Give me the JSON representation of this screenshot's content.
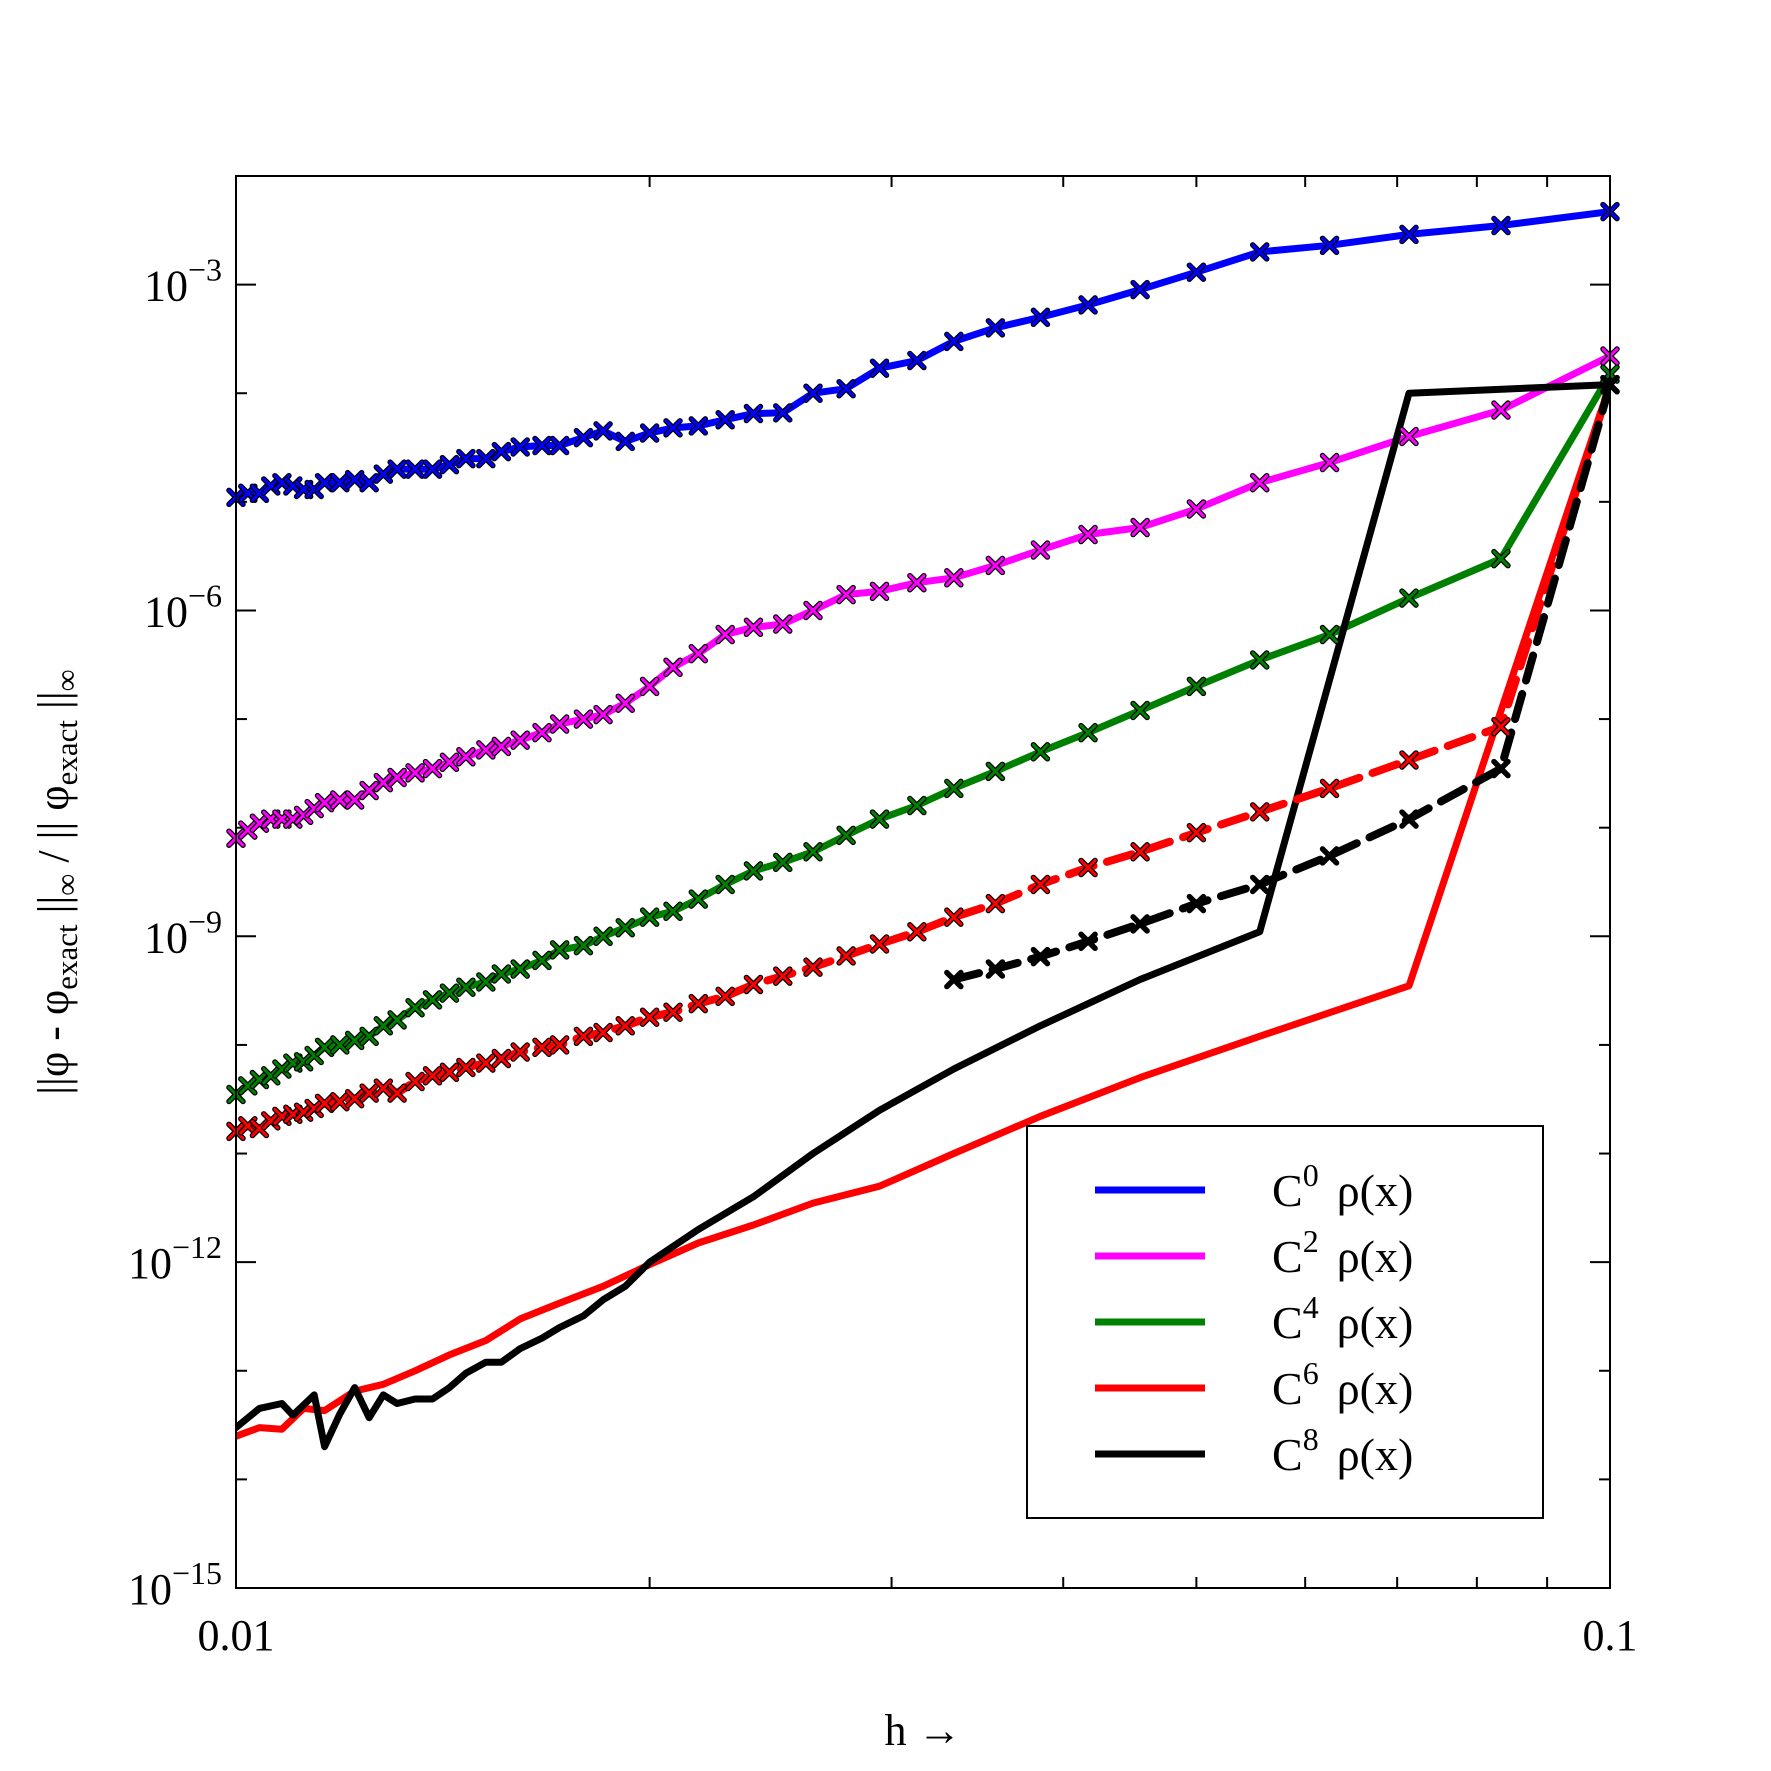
{
  "chart_data": {
    "type": "line",
    "xlabel": "h →",
    "ylabel": "||φ - φexact ||∞ / || φexact ||∞",
    "ylabel_parts": {
      "a": "||φ - φ",
      "a_sub": "exact",
      "b": " ||",
      "b_sub": "∞",
      "c": " / || φ",
      "c_sub": "exact",
      "d": " ||",
      "d_sub": "∞"
    },
    "x_scale": "log",
    "y_scale": "log",
    "xlim": [
      0.01,
      0.1
    ],
    "ylim": [
      1e-15,
      0.01
    ],
    "x_tick_labels": [
      {
        "value": 0.01,
        "label": "0.01"
      },
      {
        "value": 0.1,
        "label": "0.1"
      }
    ],
    "y_tick_labels": [
      {
        "value": 0.001,
        "base": "10",
        "exp": "−3"
      },
      {
        "value": 1e-06,
        "base": "10",
        "exp": "−6"
      },
      {
        "value": 1e-09,
        "base": "10",
        "exp": "−9"
      },
      {
        "value": 1e-12,
        "base": "10",
        "exp": "−12"
      },
      {
        "value": 1e-15,
        "base": "10",
        "exp": "−15"
      }
    ],
    "legend_position": "lower-right",
    "series": [
      {
        "name": "C0 ρ(x)",
        "legend_base": "C",
        "legend_sup": "0",
        "legend_rest": "ρ(x)",
        "color": "#0000ff",
        "linestyle": "solid",
        "marker": "x",
        "x": [
          0.01,
          0.0102,
          0.0104,
          0.0106,
          0.0108,
          0.011,
          0.0112,
          0.0114,
          0.0116,
          0.0119,
          0.0122,
          0.0125,
          0.0128,
          0.0131,
          0.0135,
          0.0139,
          0.0143,
          0.0147,
          0.0152,
          0.0156,
          0.0161,
          0.0167,
          0.0172,
          0.0179,
          0.0185,
          0.0192,
          0.02,
          0.0208,
          0.0217,
          0.0227,
          0.0238,
          0.025,
          0.0263,
          0.0278,
          0.0294,
          0.0313,
          0.0333,
          0.0357,
          0.0385,
          0.0417,
          0.0455,
          0.05,
          0.0556,
          0.0625,
          0.0714,
          0.0833,
          0.1
        ],
        "y": [
          1.1e-05,
          1.2e-05,
          1.2e-05,
          1.4e-05,
          1.5e-05,
          1.4e-05,
          1.3e-05,
          1.3e-05,
          1.5e-05,
          1.5e-05,
          1.6e-05,
          1.5e-05,
          1.8e-05,
          2e-05,
          2e-05,
          2e-05,
          2.2e-05,
          2.5e-05,
          2.5e-05,
          2.9e-05,
          3.2e-05,
          3.3e-05,
          3.3e-05,
          3.9e-05,
          4.5e-05,
          3.6e-05,
          4.3e-05,
          4.8e-05,
          5e-05,
          5.7e-05,
          6.5e-05,
          6.6e-05,
          0.0001,
          0.00011,
          0.00017,
          0.0002,
          0.0003,
          0.0004,
          0.0005,
          0.00065,
          0.0009,
          0.0013,
          0.002,
          0.0023,
          0.0029,
          0.0035,
          0.0047
        ]
      },
      {
        "name": "C2 ρ(x)",
        "legend_base": "C",
        "legend_sup": "2",
        "legend_rest": "ρ(x)",
        "color": "#ff00ff",
        "linestyle": "solid",
        "marker": "x",
        "x": [
          0.01,
          0.0102,
          0.0104,
          0.0106,
          0.0108,
          0.011,
          0.0112,
          0.0114,
          0.0116,
          0.0119,
          0.0122,
          0.0125,
          0.0128,
          0.0131,
          0.0135,
          0.0139,
          0.0143,
          0.0147,
          0.0152,
          0.0156,
          0.0161,
          0.0167,
          0.0172,
          0.0179,
          0.0185,
          0.0192,
          0.02,
          0.0208,
          0.0217,
          0.0227,
          0.0238,
          0.025,
          0.0263,
          0.0278,
          0.0294,
          0.0313,
          0.0333,
          0.0357,
          0.0385,
          0.0417,
          0.0455,
          0.05,
          0.0556,
          0.0625,
          0.0714,
          0.0833,
          0.1
        ],
        "y": [
          8e-09,
          9.5e-09,
          1.1e-08,
          1.2e-08,
          1.2e-08,
          1.2e-08,
          1.3e-08,
          1.5e-08,
          1.7e-08,
          1.8e-08,
          1.8e-08,
          2.2e-08,
          2.6e-08,
          2.9e-08,
          3.2e-08,
          3.5e-08,
          4e-08,
          4.5e-08,
          5.2e-08,
          5.6e-08,
          6.4e-08,
          7.5e-08,
          9e-08,
          1e-07,
          1.1e-07,
          1.4e-07,
          2e-07,
          3e-07,
          4e-07,
          6e-07,
          7e-07,
          7.5e-07,
          1e-06,
          1.4e-06,
          1.5e-06,
          1.8e-06,
          2e-06,
          2.6e-06,
          3.6e-06,
          5e-06,
          5.8e-06,
          8.6e-06,
          1.5e-05,
          2.3e-05,
          4e-05,
          7e-05,
          0.00022
        ]
      },
      {
        "name": "C4 ρ(x)",
        "legend_base": "C",
        "legend_sup": "4",
        "legend_rest": "ρ(x)",
        "color": "#008000",
        "linestyle": "solid",
        "marker": "x",
        "x": [
          0.01,
          0.0102,
          0.0104,
          0.0106,
          0.0108,
          0.011,
          0.0112,
          0.0114,
          0.0116,
          0.0119,
          0.0122,
          0.0125,
          0.0128,
          0.0131,
          0.0135,
          0.0139,
          0.0143,
          0.0147,
          0.0152,
          0.0156,
          0.0161,
          0.0167,
          0.0172,
          0.0179,
          0.0185,
          0.0192,
          0.02,
          0.0208,
          0.0217,
          0.0227,
          0.0238,
          0.025,
          0.0263,
          0.0278,
          0.0294,
          0.0313,
          0.0333,
          0.0357,
          0.0385,
          0.0417,
          0.0455,
          0.05,
          0.0556,
          0.0625,
          0.0714,
          0.0833,
          0.1
        ],
        "y": [
          3.5e-11,
          4.2e-11,
          4.8e-11,
          5.2e-11,
          6e-11,
          6.8e-11,
          7e-11,
          8e-11,
          9.5e-11,
          1e-10,
          1.1e-10,
          1.2e-10,
          1.5e-10,
          1.7e-10,
          2.2e-10,
          2.6e-10,
          3e-10,
          3.4e-10,
          3.8e-10,
          4.5e-10,
          5e-10,
          6e-10,
          7.5e-10,
          8.2e-10,
          1e-09,
          1.2e-09,
          1.5e-09,
          1.7e-09,
          2.2e-09,
          3e-09,
          4e-09,
          4.8e-09,
          6e-09,
          8.5e-09,
          1.2e-08,
          1.6e-08,
          2.3e-08,
          3.3e-08,
          5e-08,
          7.5e-08,
          1.2e-07,
          2e-07,
          3.5e-07,
          6e-07,
          1.3e-06,
          3e-06,
          0.00015
        ]
      },
      {
        "name": "C6 ρ(x)",
        "legend_base": "C",
        "legend_sup": "6",
        "legend_rest": "ρ(x)",
        "color": "#ff0000",
        "linestyle": "solid",
        "marker": "none",
        "x": [
          0.01,
          0.0104,
          0.0108,
          0.0112,
          0.0116,
          0.0122,
          0.0128,
          0.0135,
          0.0143,
          0.0152,
          0.0161,
          0.0172,
          0.0185,
          0.02,
          0.0217,
          0.0238,
          0.0263,
          0.0294,
          0.0333,
          0.0385,
          0.0455,
          0.0556,
          0.0714,
          0.1
        ],
        "y": [
          2.5e-14,
          3e-14,
          2.9e-14,
          4.5e-14,
          4.3e-14,
          6.5e-14,
          7.5e-14,
          1e-13,
          1.4e-13,
          1.9e-13,
          3e-13,
          4.2e-13,
          6e-13,
          9.5e-13,
          1.5e-12,
          2.2e-12,
          3.5e-12,
          5e-12,
          1e-11,
          2.2e-11,
          5e-11,
          1.2e-10,
          3.5e-10,
          0.00012
        ]
      },
      {
        "name": "C8 ρ(x)",
        "legend_base": "C",
        "legend_sup": "8",
        "legend_rest": "ρ(x)",
        "color": "#000000",
        "linestyle": "solid",
        "marker": "none",
        "x": [
          0.01,
          0.0104,
          0.0108,
          0.011,
          0.0114,
          0.0116,
          0.0119,
          0.0122,
          0.0125,
          0.0128,
          0.0131,
          0.0135,
          0.0139,
          0.0143,
          0.0147,
          0.0152,
          0.0156,
          0.0161,
          0.0167,
          0.0172,
          0.0179,
          0.0185,
          0.0192,
          0.02,
          0.0217,
          0.0238,
          0.0263,
          0.0294,
          0.0333,
          0.0385,
          0.0455,
          0.0556,
          0.0714,
          0.1
        ],
        "y": [
          3e-14,
          4.5e-14,
          5e-14,
          3.9e-14,
          6e-14,
          2e-14,
          4e-14,
          7e-14,
          3.7e-14,
          6e-14,
          5e-14,
          5.5e-14,
          5.5e-14,
          7e-14,
          9.5e-14,
          1.2e-13,
          1.2e-13,
          1.6e-13,
          2e-13,
          2.5e-13,
          3.2e-13,
          4.5e-13,
          6e-13,
          1e-12,
          2e-12,
          4e-12,
          1e-11,
          2.5e-11,
          6e-11,
          1.5e-10,
          4e-10,
          1.1e-09,
          0.0001,
          0.00012
        ]
      },
      {
        "name": "",
        "color": "#ff0000",
        "linestyle": "dashed",
        "marker": "x",
        "x": [
          0.01,
          0.0102,
          0.0104,
          0.0106,
          0.0108,
          0.011,
          0.0112,
          0.0114,
          0.0116,
          0.0119,
          0.0122,
          0.0125,
          0.0128,
          0.0131,
          0.0135,
          0.0139,
          0.0143,
          0.0147,
          0.0152,
          0.0156,
          0.0161,
          0.0167,
          0.0172,
          0.0179,
          0.0185,
          0.0192,
          0.02,
          0.0208,
          0.0217,
          0.0227,
          0.0238,
          0.025,
          0.0263,
          0.0278,
          0.0294,
          0.0313,
          0.0333,
          0.0357,
          0.0385,
          0.0417,
          0.0455,
          0.05,
          0.0556,
          0.0625,
          0.0714,
          0.0833,
          0.1
        ],
        "y": [
          1.6e-11,
          1.8e-11,
          1.7e-11,
          2e-11,
          2.2e-11,
          2.3e-11,
          2.4e-11,
          2.6e-11,
          2.9e-11,
          3e-11,
          3.2e-11,
          3.6e-11,
          4e-11,
          3.6e-11,
          4.6e-11,
          5.2e-11,
          5.6e-11,
          6.2e-11,
          6.8e-11,
          7.5e-11,
          8.6e-11,
          9.5e-11,
          1e-10,
          1.2e-10,
          1.3e-10,
          1.5e-10,
          1.8e-10,
          2e-10,
          2.4e-10,
          2.8e-10,
          3.6e-10,
          4.3e-10,
          5.2e-10,
          6.6e-10,
          8.5e-10,
          1.1e-09,
          1.5e-09,
          2e-09,
          3e-09,
          4.3e-09,
          6e-09,
          9e-09,
          1.4e-08,
          2.3e-08,
          4.2e-08,
          8.5e-08,
          0.00012
        ]
      },
      {
        "name": "",
        "color": "#000000",
        "linestyle": "dashed",
        "marker": "x",
        "x": [
          0.0333,
          0.0357,
          0.0385,
          0.0417,
          0.0455,
          0.05,
          0.0556,
          0.0625,
          0.0714,
          0.0833,
          0.1
        ],
        "y": [
          4e-10,
          5e-10,
          6.5e-10,
          9e-10,
          1.3e-09,
          2e-09,
          3e-09,
          5.5e-09,
          1.2e-08,
          3.5e-08,
          0.00012
        ]
      }
    ]
  }
}
